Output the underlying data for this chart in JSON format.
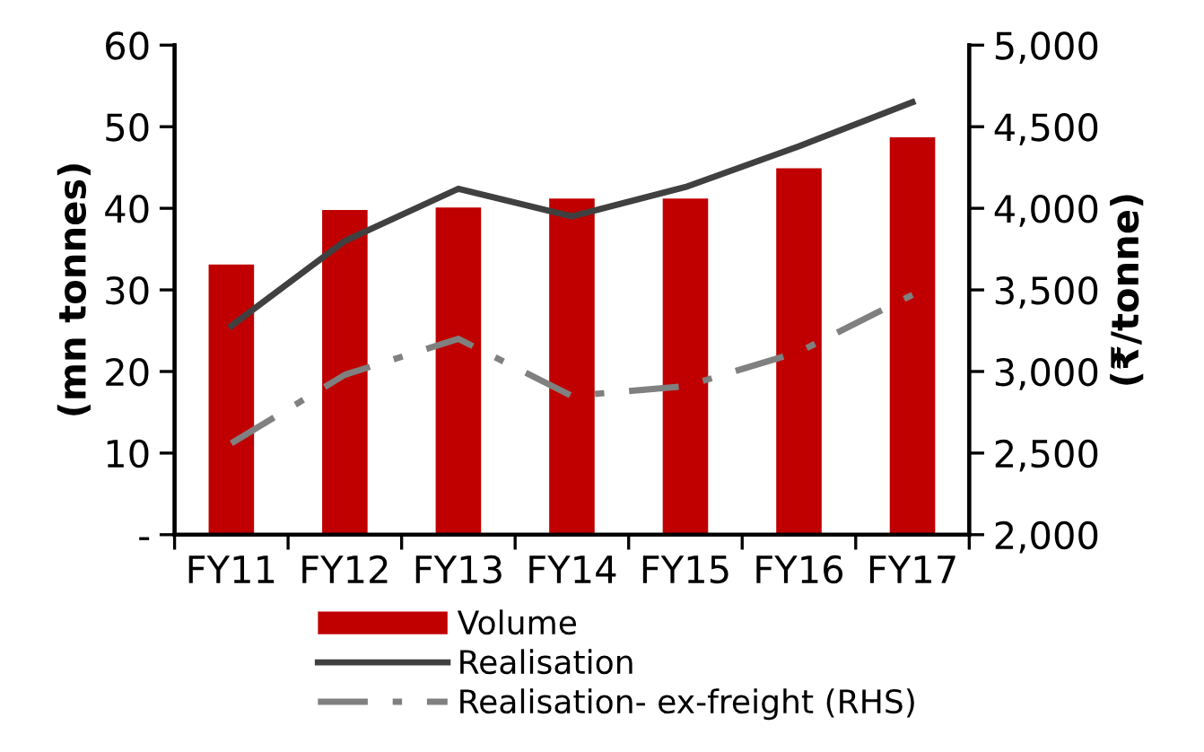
{
  "chart_data": {
    "type": "bar",
    "ylabel": "(mn tonnes)",
    "y2label": "(₹/tonne)",
    "categories": [
      "FY11",
      "FY12",
      "FY13",
      "FY14",
      "FY15",
      "FY16",
      "FY17"
    ],
    "series": [
      {
        "name": "Volume",
        "color": "#c00000",
        "values": [
          33.1,
          39.8,
          40.1,
          41.2,
          41.2,
          44.9,
          48.7
        ]
      },
      {
        "name": "Realisation",
        "type": "line",
        "axis": "y2",
        "color": "#404040",
        "line_style": "solid",
        "values": [
          3280,
          3800,
          4120,
          3950,
          4130,
          4380,
          4650
        ]
      },
      {
        "name": "Realisation- ex-freight (RHS)",
        "type": "line",
        "axis": "y2",
        "color": "#808080",
        "line_style": "dashdot",
        "values": [
          2560,
          2980,
          3200,
          2850,
          2910,
          3120,
          3470
        ]
      }
    ],
    "ylim": [
      0,
      60
    ],
    "yticks": [
      {
        "value": 0,
        "label": "-"
      },
      10,
      20,
      30,
      40,
      50,
      60
    ],
    "y2lim": [
      2000,
      5000
    ],
    "y2ticks": [
      {
        "value": 2000,
        "label": "2,000"
      },
      {
        "value": 2500,
        "label": "2,500"
      },
      {
        "value": 3000,
        "label": "3,000"
      },
      {
        "value": 3500,
        "label": "3,500"
      },
      {
        "value": 4000,
        "label": "4,000"
      },
      {
        "value": 4500,
        "label": "4,500"
      },
      {
        "value": 5000,
        "label": "5,000"
      }
    ],
    "grid": false,
    "legend": "bottom",
    "marker": "none"
  }
}
